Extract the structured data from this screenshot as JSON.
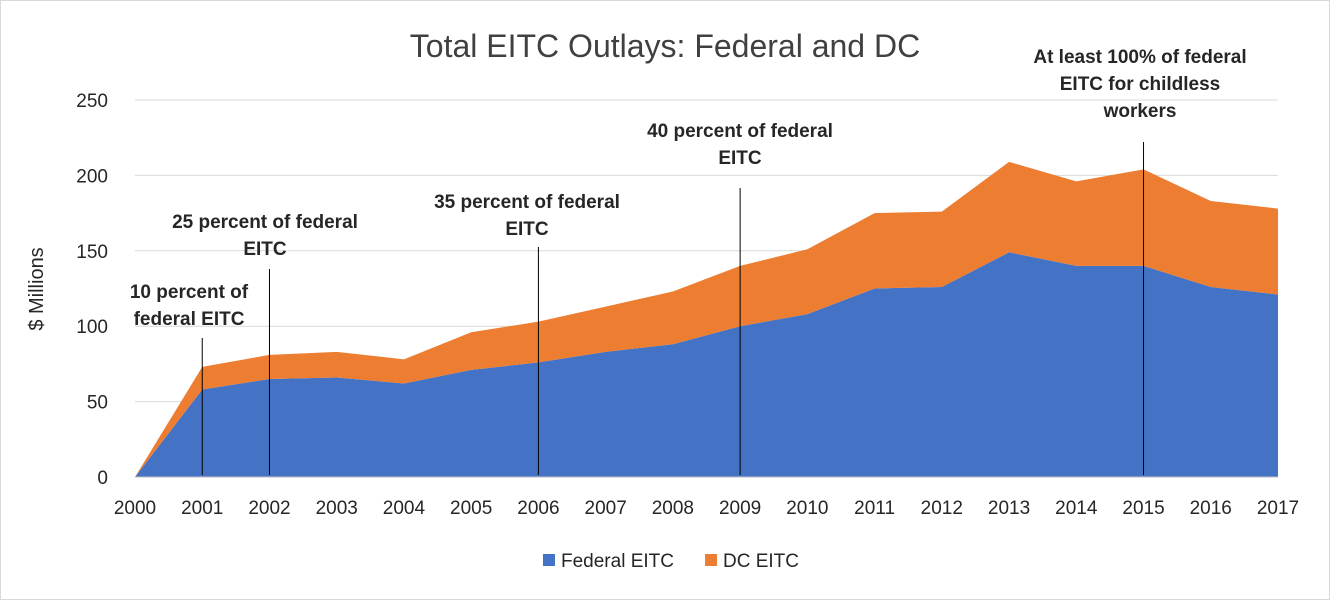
{
  "chart_data": {
    "type": "area",
    "stacked": true,
    "title": "Total EITC Outlays: Federal and DC",
    "xlabel": "",
    "ylabel": "$ Millions",
    "x": [
      "2000",
      "2001",
      "2002",
      "2003",
      "2004",
      "2005",
      "2006",
      "2007",
      "2008",
      "2009",
      "2010",
      "2011",
      "2012",
      "2013",
      "2014",
      "2015",
      "2016",
      "2017"
    ],
    "ylim": [
      0,
      250
    ],
    "yticks": [
      0,
      50,
      100,
      150,
      200,
      250
    ],
    "grid": true,
    "legend_position": "bottom",
    "series": [
      {
        "name": "Federal EITC",
        "color": "#4472C4",
        "values": [
          0,
          58,
          65,
          66,
          62,
          71,
          76,
          83,
          88,
          100,
          108,
          125,
          126,
          149,
          140,
          140,
          126,
          121
        ]
      },
      {
        "name": "DC EITC",
        "color": "#ED7D31",
        "values": [
          0,
          15,
          16,
          17,
          16,
          25,
          27,
          30,
          35,
          40,
          43,
          50,
          50,
          60,
          56,
          64,
          57,
          57
        ]
      }
    ],
    "annotations": [
      {
        "x": "2001",
        "lines": [
          "10 percent of",
          "federal EITC"
        ]
      },
      {
        "x": "2002",
        "lines": [
          "25 percent of federal",
          "EITC"
        ]
      },
      {
        "x": "2006",
        "lines": [
          "35 percent of federal",
          "EITC"
        ]
      },
      {
        "x": "2009",
        "lines": [
          "40 percent of federal",
          "EITC"
        ]
      },
      {
        "x": "2015",
        "lines": [
          "At least 100% of federal",
          "EITC for childless",
          "workers"
        ]
      }
    ]
  }
}
